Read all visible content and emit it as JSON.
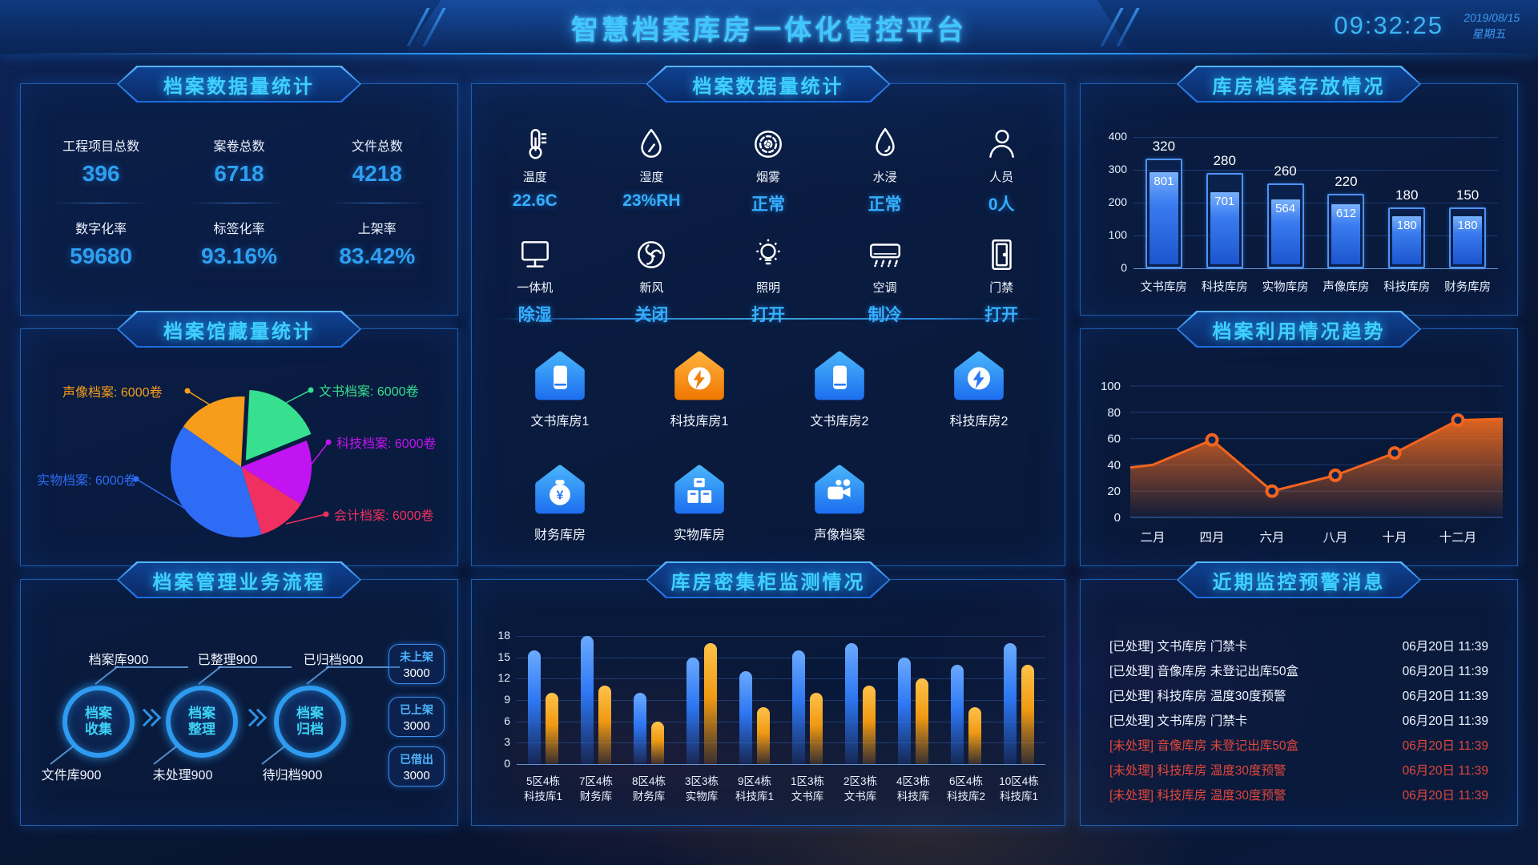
{
  "header": {
    "title": "智慧档案库房一体化管控平台",
    "time": "09:32:25",
    "date": "2019/08/15",
    "weekday": "星期五"
  },
  "left_stats": {
    "title": "档案数据量统计",
    "items": [
      {
        "label": "工程项目总数",
        "value": "396"
      },
      {
        "label": "案卷总数",
        "value": "6718"
      },
      {
        "label": "文件总数",
        "value": "4218"
      },
      {
        "label": "数字化率",
        "value": "59680"
      },
      {
        "label": "标签化率",
        "value": "93.16%"
      },
      {
        "label": "上架率",
        "value": "83.42%"
      }
    ]
  },
  "collection": {
    "title": "档案馆藏量统计"
  },
  "flow": {
    "title": "档案管理业务流程",
    "top_labels": [
      "档案库900",
      "已整理900",
      "已归档900"
    ],
    "circles": [
      {
        "line1": "档案",
        "line2": "收集"
      },
      {
        "line1": "档案",
        "line2": "整理"
      },
      {
        "line1": "档案",
        "line2": "归档"
      }
    ],
    "bottom_labels": [
      "文件库900",
      "未处理900",
      "待归档900"
    ],
    "buttons": [
      {
        "label": "未上架",
        "value": "3000"
      },
      {
        "label": "已上架",
        "value": "3000"
      },
      {
        "label": "已借出",
        "value": "3000"
      }
    ]
  },
  "env": {
    "title": "档案数据量统计",
    "sensors": [
      [
        {
          "icon": "thermometer-icon",
          "label": "温度",
          "value": "22.6C"
        },
        {
          "icon": "humidity-icon",
          "label": "湿度",
          "value": "23%RH"
        },
        {
          "icon": "smoke-icon",
          "label": "烟雾",
          "value": "正常"
        },
        {
          "icon": "water-icon",
          "label": "水浸",
          "value": "正常"
        },
        {
          "icon": "person-icon",
          "label": "人员",
          "value": "0人"
        }
      ],
      [
        {
          "icon": "all-in-one-icon",
          "label": "一体机",
          "value": "除湿"
        },
        {
          "icon": "fresh-air-icon",
          "label": "新风",
          "value": "关闭"
        },
        {
          "icon": "lighting-icon",
          "label": "照明",
          "value": "打开"
        },
        {
          "icon": "ac-icon",
          "label": "空调",
          "value": "制冷"
        },
        {
          "icon": "door-icon",
          "label": "门禁",
          "value": "打开"
        }
      ]
    ],
    "rooms": [
      {
        "label": "文书库房1",
        "icon": "book",
        "theme": "blue"
      },
      {
        "label": "科技库房1",
        "icon": "tech",
        "theme": "orange"
      },
      {
        "label": "文书库房2",
        "icon": "book",
        "theme": "blue"
      },
      {
        "label": "科技库房2",
        "icon": "tech",
        "theme": "blue"
      },
      {
        "label": "财务库房",
        "icon": "money",
        "theme": "blue"
      },
      {
        "label": "实物库房",
        "icon": "shelf",
        "theme": "blue"
      },
      {
        "label": "声像档案",
        "icon": "camera",
        "theme": "blue"
      }
    ]
  },
  "cabinet": {
    "title": "库房密集柜监测情况"
  },
  "storage": {
    "title": "库房档案存放情况"
  },
  "trend": {
    "title": "档案利用情况趋势"
  },
  "alerts": {
    "title": "近期监控预警消息",
    "items": [
      {
        "status": "[已处理]",
        "text": "文书库房 门禁卡",
        "time": "06月20日 11:39",
        "state": "done"
      },
      {
        "status": "[已处理]",
        "text": "音像库房 未登记出库50盒",
        "time": "06月20日 11:39",
        "state": "done"
      },
      {
        "status": "[已处理]",
        "text": "科技库房 温度30度预警",
        "time": "06月20日 11:39",
        "state": "done"
      },
      {
        "status": "[已处理]",
        "text": "文书库房 门禁卡",
        "time": "06月20日 11:39",
        "state": "done"
      },
      {
        "status": "[未处理]",
        "text": "音像库房 未登记出库50盒",
        "time": "06月20日 11:39",
        "state": "pending"
      },
      {
        "status": "[未处理]",
        "text": "科技库房 温度30度预警",
        "time": "06月20日 11:39",
        "state": "pending"
      },
      {
        "status": "[未处理]",
        "text": "科技库房 温度30度预警",
        "time": "06月20日 11:39",
        "state": "pending"
      }
    ]
  },
  "chart_data": [
    {
      "id": "collection-pie",
      "type": "pie",
      "title": "档案馆藏量统计",
      "start_angle": 3,
      "slices": [
        {
          "label": "文书档案",
          "value": 6000,
          "unit": "卷",
          "display": "文书档案: 6000卷",
          "color": "#36e08e",
          "angle": 65,
          "exploded": true
        },
        {
          "label": "科技档案",
          "value": 6000,
          "unit": "卷",
          "display": "科技档案: 6000卷",
          "color": "#c214f2",
          "angle": 54
        },
        {
          "label": "会计档案",
          "value": 6000,
          "unit": "卷",
          "display": "会计档案: 6000卷",
          "color": "#f03061",
          "angle": 41
        },
        {
          "label": "实物档案",
          "value": 6000,
          "unit": "卷",
          "display": "实物档案: 6000卷",
          "color": "#2e6cf6",
          "angle": 142
        },
        {
          "label": "声像档案",
          "value": 6000,
          "unit": "卷",
          "display": "声像档案: 6000卷",
          "color": "#f79d1b",
          "angle": 58
        }
      ]
    },
    {
      "id": "cabinet-bars",
      "type": "bar",
      "title": "库房密集柜监测情况",
      "categories": [
        [
          "5区4栋",
          "科技库1"
        ],
        [
          "7区4栋",
          "财务库"
        ],
        [
          "8区4栋",
          "财务库"
        ],
        [
          "3区3栋",
          "实物库"
        ],
        [
          "9区4栋",
          "科技库1"
        ],
        [
          "1区3栋",
          "文书库"
        ],
        [
          "2区3栋",
          "文书库"
        ],
        [
          "4区3栋",
          "科技库"
        ],
        [
          "6区4栋",
          "科技库2"
        ],
        [
          "10区4栋",
          "科技库1"
        ]
      ],
      "series": [
        {
          "name": "blue",
          "color": "#2f7df5",
          "values": [
            16,
            18,
            10,
            15,
            13,
            16,
            17,
            15,
            14,
            17
          ]
        },
        {
          "name": "orange",
          "color": "#f5a122",
          "values": [
            10,
            11,
            6,
            17,
            8,
            10,
            11,
            12,
            8,
            14
          ]
        }
      ],
      "ylim": [
        0,
        18
      ],
      "yticks": [
        0,
        3,
        6,
        9,
        12,
        15,
        18
      ],
      "grid": true,
      "legend": "none"
    },
    {
      "id": "storage-bars",
      "type": "bar",
      "title": "库房档案存放情况",
      "categories": [
        "文书库房",
        "科技库房",
        "实物库房",
        "声像库房",
        "科技库房",
        "财务库房"
      ],
      "capacity": [
        320,
        280,
        260,
        220,
        180,
        150
      ],
      "stored": [
        801,
        701,
        564,
        612,
        180,
        180
      ],
      "capacity_draw": [
        335,
        290,
        258,
        228,
        185,
        185
      ],
      "stored_draw": [
        295,
        235,
        212,
        197,
        162,
        162
      ],
      "ylim": [
        0,
        400
      ],
      "yticks": [
        0,
        100,
        200,
        300,
        400
      ],
      "grid": true,
      "legend": "none"
    },
    {
      "id": "usage-trend",
      "type": "area",
      "title": "档案利用情况趋势",
      "categories": [
        "二月",
        "四月",
        "六月",
        "八月",
        "十月",
        "十二月"
      ],
      "values": [
        40,
        59,
        20,
        32,
        49,
        74
      ],
      "right_edge_value": 75,
      "ylim": [
        0,
        100
      ],
      "yticks": [
        0,
        20,
        40,
        60,
        80,
        100
      ],
      "line_color": "#f2641e",
      "grid": true,
      "legend": "none"
    }
  ]
}
